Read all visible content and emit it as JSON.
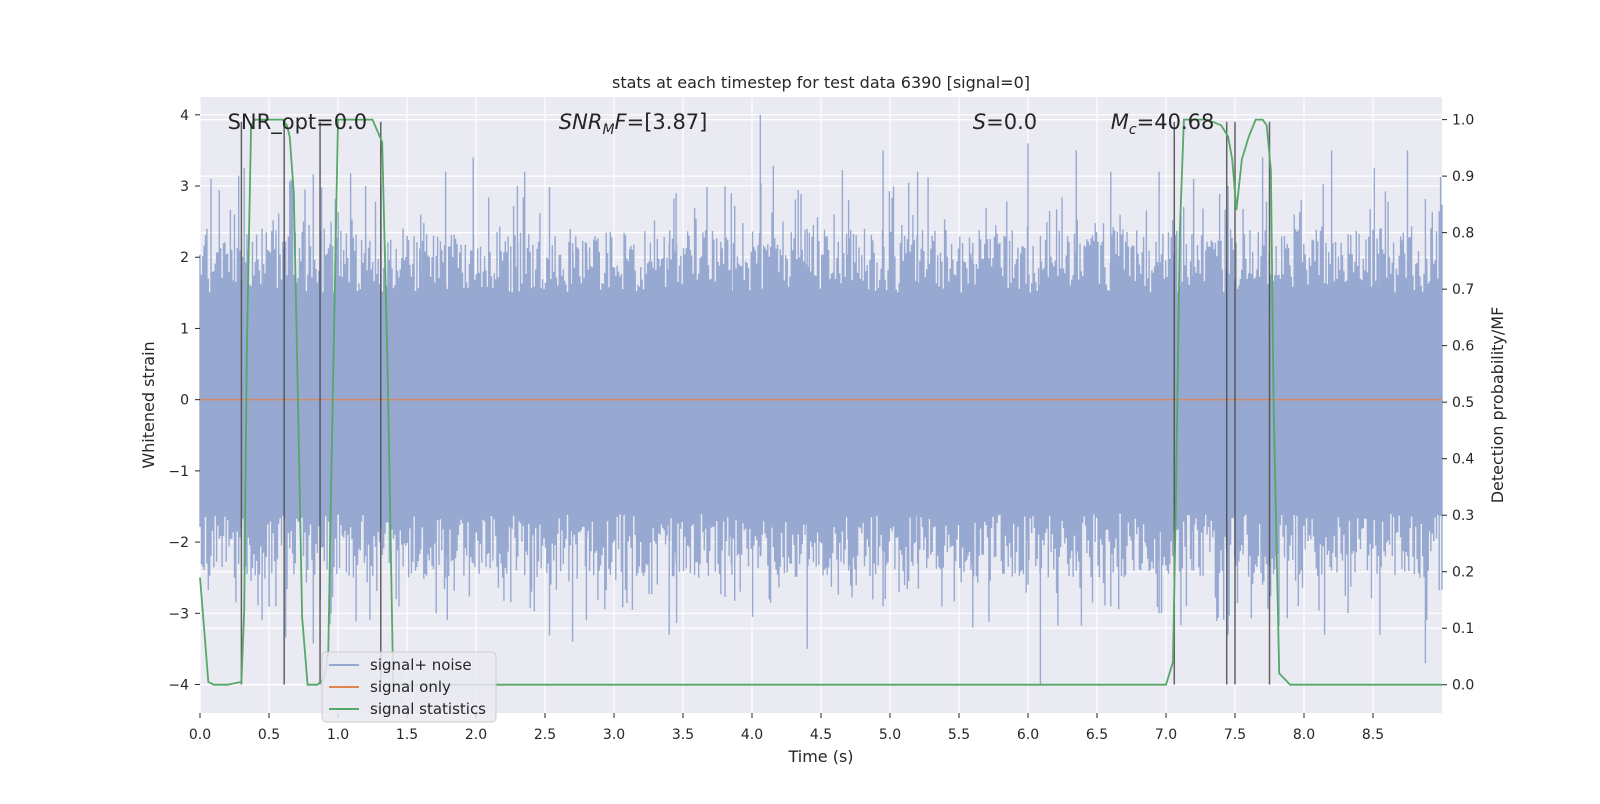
{
  "chart_data": {
    "type": "line",
    "title": "stats at each timestep for test data 6390 [signal=0]",
    "xlabel": "Time (s)",
    "ylabel": "Whitened strain",
    "ylabel_right": "Detection probability/MF",
    "xlim": [
      0.0,
      9.0
    ],
    "ylim": [
      -4.4,
      4.25
    ],
    "ylim_right": [
      -0.05,
      1.04
    ],
    "grid": true,
    "legend_placement": "lower-left",
    "x_ticks": [
      "0.0",
      "0.5",
      "1.0",
      "1.5",
      "2.0",
      "2.5",
      "3.0",
      "3.5",
      "4.0",
      "4.5",
      "5.0",
      "5.5",
      "6.0",
      "6.5",
      "7.0",
      "7.5",
      "8.0",
      "8.5"
    ],
    "y_ticks": [
      "−4",
      "−3",
      "−2",
      "−1",
      "0",
      "1",
      "2",
      "3",
      "4"
    ],
    "y_ticks_right": [
      "0.0",
      "0.1",
      "0.2",
      "0.3",
      "0.4",
      "0.5",
      "0.6",
      "0.7",
      "0.8",
      "0.9",
      "1.0"
    ],
    "annotations": [
      {
        "text": "SNR_opt=0.0",
        "x": 0.2,
        "y": 3.9
      },
      {
        "text": "SNR_MF=[3.87]",
        "main": "SNR",
        "sub": "M",
        "rest": "F=[3.87]",
        "x": 2.6,
        "y": 3.9
      },
      {
        "text": "S=0.0",
        "main": "S",
        "rest": "=0.0",
        "x": 5.6,
        "y": 3.9
      },
      {
        "text": "M_c=40.68",
        "main": "M",
        "sub": "c",
        "rest": "=40.68",
        "x": 6.6,
        "y": 3.9
      }
    ],
    "series": [
      {
        "name": "signal+ noise",
        "color": "#97a9d1",
        "kind": "noise",
        "x_range": [
          0.0,
          9.0
        ],
        "typical_range": [
          -1.6,
          1.5
        ],
        "peak_range": [
          -4.0,
          3.9
        ],
        "spike_samples": [
          [
            0.05,
            2.4,
            -2.3
          ],
          [
            0.08,
            3.1,
            -2.2
          ],
          [
            0.25,
            2.6,
            -2.5
          ],
          [
            0.45,
            2.4,
            -3.1
          ],
          [
            0.55,
            2.3,
            -2.9
          ],
          [
            0.75,
            2.5,
            -2.2
          ],
          [
            0.95,
            2.5,
            -3.0
          ],
          [
            1.2,
            3.0,
            -2.2
          ],
          [
            1.6,
            2.6,
            -2.1
          ],
          [
            1.78,
            3.2,
            -2.5
          ],
          [
            1.98,
            3.4,
            -2.3
          ],
          [
            2.3,
            3.0,
            -2.2
          ],
          [
            2.7,
            2.2,
            -3.4
          ],
          [
            2.8,
            2.2,
            -3.1
          ],
          [
            3.4,
            2.2,
            -3.3
          ],
          [
            3.45,
            2.9,
            -2.3
          ],
          [
            3.85,
            2.9,
            -2.3
          ],
          [
            4.06,
            4.0,
            -2.2
          ],
          [
            4.4,
            2.4,
            -3.5
          ],
          [
            4.7,
            2.8,
            -2.4
          ],
          [
            4.95,
            3.5,
            -2.9
          ],
          [
            5.2,
            3.2,
            -2.3
          ],
          [
            5.6,
            2.2,
            -3.2
          ],
          [
            6.0,
            3.6,
            -2.6
          ],
          [
            6.09,
            2.3,
            -4.0
          ],
          [
            6.35,
            3.5,
            -2.4
          ],
          [
            6.6,
            3.2,
            -2.9
          ],
          [
            6.95,
            3.2,
            -3.0
          ],
          [
            7.2,
            3.1,
            -2.4
          ],
          [
            7.45,
            3.0,
            -3.3
          ],
          [
            7.7,
            3.4,
            -2.6
          ],
          [
            7.98,
            2.8,
            -2.4
          ],
          [
            8.2,
            3.5,
            -2.4
          ],
          [
            8.55,
            2.4,
            -3.3
          ],
          [
            8.75,
            3.5,
            -2.2
          ],
          [
            8.88,
            2.3,
            -3.7
          ]
        ]
      },
      {
        "name": "signal only",
        "color": "#dd8452",
        "kind": "flat",
        "x": [
          0.0,
          9.0
        ],
        "y": [
          0.0,
          0.0
        ]
      },
      {
        "name": "signal statistics",
        "color": "#55a868",
        "kind": "line",
        "axis": "right",
        "x": [
          0.0,
          0.03,
          0.06,
          0.1,
          0.2,
          0.3,
          0.32,
          0.34,
          0.37,
          0.4,
          0.5,
          0.55,
          0.6,
          0.63,
          0.65,
          0.68,
          0.71,
          0.74,
          0.78,
          0.85,
          0.9,
          0.93,
          0.95,
          1.0,
          1.1,
          1.15,
          1.25,
          1.32,
          1.36,
          1.4,
          2.0,
          3.0,
          4.0,
          5.0,
          6.0,
          7.0,
          7.05,
          7.07,
          7.1,
          7.13,
          7.2,
          7.3,
          7.4,
          7.45,
          7.48,
          7.51,
          7.55,
          7.6,
          7.65,
          7.7,
          7.73,
          7.76,
          7.78,
          7.82,
          7.9,
          8.0,
          9.0
        ],
        "y": [
          0.19,
          0.1,
          0.005,
          0.0,
          0.0,
          0.005,
          0.13,
          0.6,
          0.99,
          1.0,
          1.0,
          1.0,
          1.0,
          0.99,
          0.97,
          0.87,
          0.5,
          0.12,
          0.0,
          0.0,
          0.01,
          0.06,
          0.35,
          1.0,
          1.0,
          1.0,
          1.0,
          0.96,
          0.55,
          0.0,
          0.0,
          0.0,
          0.0,
          0.0,
          0.0,
          0.0,
          0.04,
          0.3,
          0.8,
          1.0,
          1.0,
          1.0,
          0.99,
          0.97,
          0.93,
          0.84,
          0.93,
          0.97,
          1.0,
          1.0,
          0.99,
          0.91,
          0.5,
          0.02,
          0.0,
          0.0,
          0.0
        ]
      }
    ],
    "vertical_markers_x": [
      0.3,
      0.61,
      0.87,
      1.31,
      7.06,
      7.44,
      7.5,
      7.75
    ]
  }
}
